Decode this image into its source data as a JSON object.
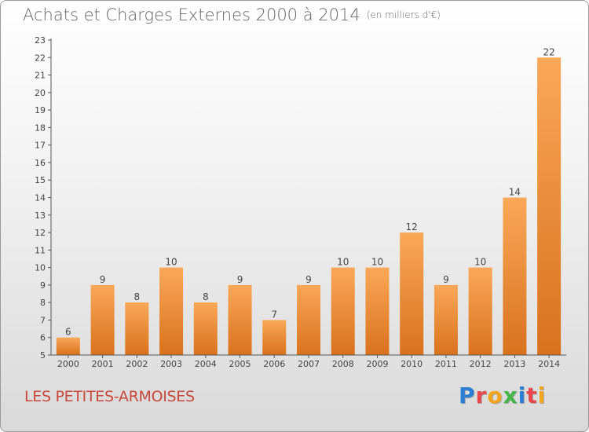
{
  "header": {
    "title": "Achats et Charges Externes 2000 à 2014",
    "unit": "(en milliers d'€)"
  },
  "footer": {
    "commune": "LES PETITES-ARMOISES",
    "logo_text": "Proxiti",
    "logo_colors": [
      "#2a7fd4",
      "#e8474c",
      "#f2a51a",
      "#44b649",
      "#2a7fd4",
      "#e8474c",
      "#f2a51a"
    ]
  },
  "colors": {
    "bar_light": "#f9a858",
    "bar_dark": "#d9711c",
    "axis": "#555555",
    "grid": "#e6e6e6"
  },
  "chart_data": {
    "type": "bar",
    "title": "Achats et Charges Externes 2000 à 2014",
    "subtitle": "(en milliers d'€)",
    "xlabel": "",
    "ylabel": "",
    "categories": [
      "2000",
      "2001",
      "2002",
      "2003",
      "2004",
      "2005",
      "2006",
      "2007",
      "2008",
      "2009",
      "2010",
      "2011",
      "2012",
      "2013",
      "2014"
    ],
    "values": [
      6,
      9,
      8,
      10,
      8,
      9,
      7,
      9,
      10,
      10,
      12,
      9,
      10,
      14,
      22
    ],
    "ylim": [
      5,
      23
    ],
    "yticks": [
      5,
      6,
      7,
      8,
      9,
      10,
      11,
      12,
      13,
      14,
      15,
      16,
      17,
      18,
      19,
      20,
      21,
      22,
      23
    ],
    "data_labels": true,
    "grid": false
  }
}
